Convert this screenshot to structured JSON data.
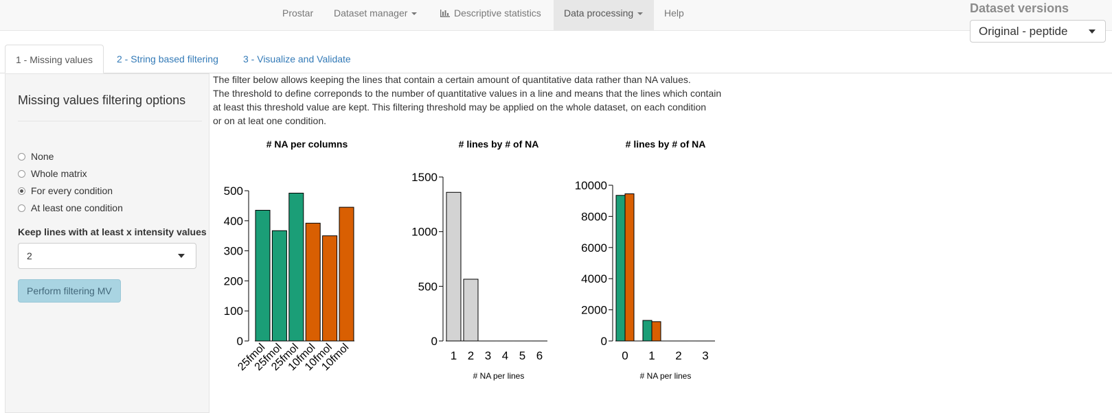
{
  "navbar": {
    "items": [
      {
        "label": "Prostar"
      },
      {
        "label": "Dataset manager"
      },
      {
        "label": "Descriptive statistics",
        "icon": "bar-chart-icon"
      },
      {
        "label": "Data processing"
      },
      {
        "label": "Help"
      }
    ],
    "active_index": 3
  },
  "dataset_versions": {
    "title": "Dataset versions",
    "selected": "Original - peptide"
  },
  "tabs": [
    {
      "label": "1 - Missing values",
      "active": true
    },
    {
      "label": "2 - String based filtering",
      "active": false
    },
    {
      "label": "3 - Visualize and Validate",
      "active": false
    }
  ],
  "sidebar": {
    "title": "Missing values filtering options",
    "options": [
      {
        "label": "None",
        "checked": false
      },
      {
        "label": "Whole matrix",
        "checked": false
      },
      {
        "label": "For every condition",
        "checked": true
      },
      {
        "label": "At least one condition",
        "checked": false
      }
    ],
    "keep_label": "Keep lines with at least x intensity values",
    "keep_value": "2",
    "button_label": "Perform filtering MV"
  },
  "description": [
    "The filter below allows keeping the lines that contain a certain amount of quantitative data rather than NA values.",
    "The threshold to define correponds to the number of quantitative values in a line and means that the lines which contain",
    "at least this threshold value are kept. This filtering threshold may be applied on the whole dataset, on each condition",
    "or on at leat one condition."
  ],
  "colors": {
    "condition_a": "#1b9e77",
    "condition_b": "#d95f02",
    "grey_bar": "#d3d3d3",
    "link": "#337ab7"
  },
  "chart_data": [
    {
      "type": "bar",
      "title": "# NA per columns",
      "categories": [
        "25fmol",
        "25fmol",
        "25fmol",
        "10fmol",
        "10fmol",
        "10fmol"
      ],
      "values": [
        435,
        367,
        492,
        392,
        350,
        445
      ],
      "colors": [
        "#1b9e77",
        "#1b9e77",
        "#1b9e77",
        "#d95f02",
        "#d95f02",
        "#d95f02"
      ],
      "ylim": [
        0,
        500
      ],
      "yticks": [
        0,
        100,
        200,
        300,
        400,
        500
      ],
      "xlabel": "",
      "ylabel": ""
    },
    {
      "type": "bar",
      "title": "# lines by # of NA",
      "categories": [
        "1",
        "2",
        "3",
        "4",
        "5",
        "6"
      ],
      "values": [
        1360,
        565,
        0,
        0,
        0,
        0
      ],
      "colors": [
        "#d3d3d3",
        "#d3d3d3",
        "#d3d3d3",
        "#d3d3d3",
        "#d3d3d3",
        "#d3d3d3"
      ],
      "ylim": [
        0,
        1500
      ],
      "yticks": [
        0,
        500,
        1000,
        1500
      ],
      "xlabel": "# NA per lines",
      "ylabel": ""
    },
    {
      "type": "bar",
      "title": "# lines by # of NA",
      "categories": [
        "0",
        "1",
        "2",
        "3"
      ],
      "series": [
        {
          "values": [
            9350,
            1320,
            0,
            0
          ],
          "color": "#1b9e77"
        },
        {
          "values": [
            9450,
            1240,
            0,
            0
          ],
          "color": "#d95f02"
        }
      ],
      "ylim": [
        0,
        10000
      ],
      "yticks": [
        0,
        2000,
        4000,
        6000,
        8000,
        10000
      ],
      "xlabel": "# NA per lines",
      "ylabel": ""
    }
  ]
}
